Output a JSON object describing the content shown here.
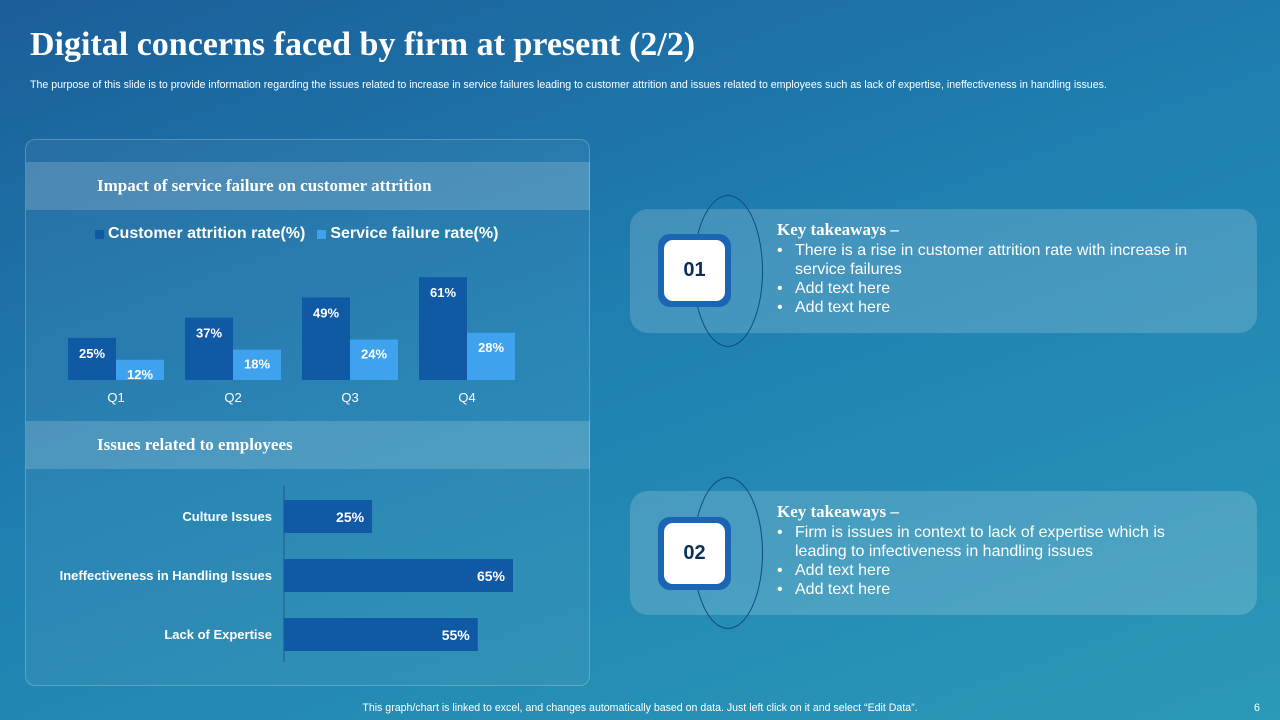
{
  "slide": {
    "title": "Digital concerns faced by firm at present (2/2)",
    "subtitle": "The purpose of this slide is to provide information regarding the issues related to increase in service failures leading to customer attrition and issues related to employees such as lack of expertise, ineffectiveness in handling issues.",
    "footer": "This graph/chart is linked to excel, and changes automatically based on data. Just left click on it and select “Edit Data”.",
    "page_number": "6"
  },
  "sections": {
    "attrition_header": "Impact of service failure on customer attrition",
    "employees_header": "Issues related to employees"
  },
  "colors": {
    "series_dark": "#0f59a5",
    "series_light": "#3ea2ee",
    "bar_emp": "#0f59a5",
    "num_border": "#1a66b4"
  },
  "chart_data": [
    {
      "type": "bar",
      "title": "Impact of service failure on customer attrition",
      "categories": [
        "Q1",
        "Q2",
        "Q3",
        "Q4"
      ],
      "series": [
        {
          "name": "Customer attrition rate(%)",
          "values": [
            25,
            37,
            49,
            61
          ],
          "labels": [
            "25%",
            "37%",
            "49%",
            "61%"
          ]
        },
        {
          "name": "Service failure rate(%)",
          "values": [
            12,
            18,
            24,
            28
          ],
          "labels": [
            "12%",
            "18%",
            "24%",
            "28%"
          ]
        }
      ],
      "ylim": [
        0,
        70
      ],
      "xlabel": "",
      "ylabel": "",
      "legend": "top"
    },
    {
      "type": "bar",
      "orientation": "horizontal",
      "title": "Issues related to employees",
      "categories": [
        "Culture Issues",
        "Ineffectiveness in Handling Issues",
        "Lack of Expertise"
      ],
      "values": [
        25,
        65,
        55
      ],
      "labels": [
        "25%",
        "65%",
        "55%"
      ],
      "xlim": [
        0,
        65
      ],
      "xlabel": "",
      "ylabel": ""
    }
  ],
  "takeaways": [
    {
      "number": "01",
      "heading": "Key takeaways –",
      "bullets": [
        "There is a rise in customer attrition rate with increase in service failures",
        "Add text here",
        "Add text here"
      ]
    },
    {
      "number": "02",
      "heading": "Key takeaways –",
      "bullets": [
        "Firm is issues in context to lack of expertise which is leading to infectiveness in handling issues",
        "Add text here",
        "Add text here"
      ]
    }
  ]
}
